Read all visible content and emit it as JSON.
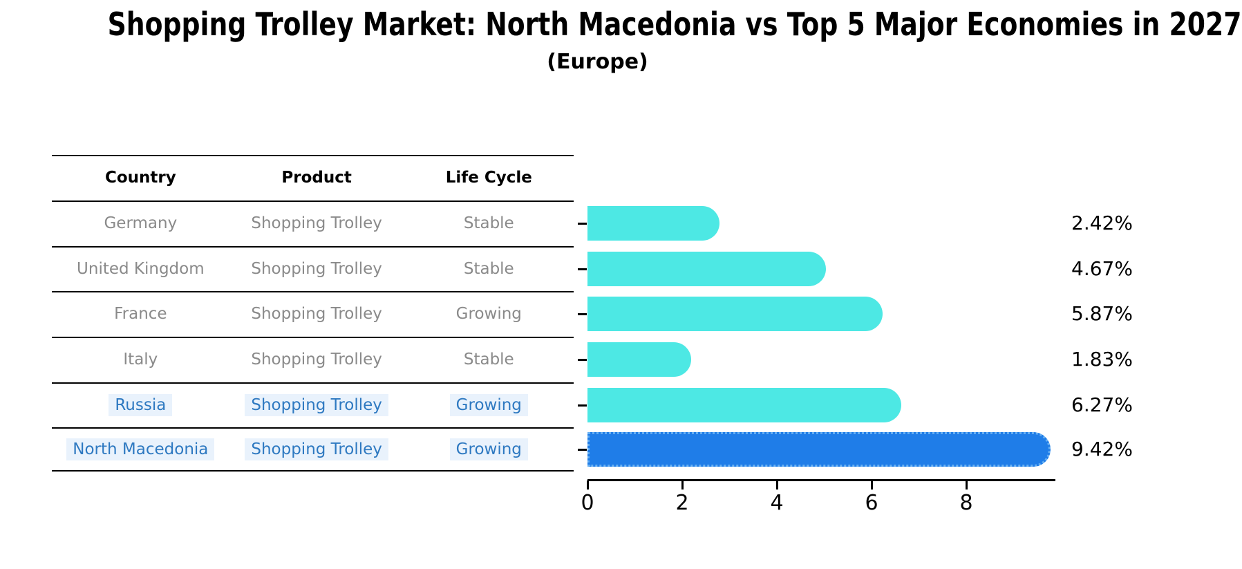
{
  "title": "Shopping Trolley Market: North Macedonia vs Top 5 Major Economies in 2027",
  "subtitle": "(Europe)",
  "table": {
    "headers": [
      "Country",
      "Product",
      "Life Cycle"
    ],
    "rows": [
      {
        "country": "Germany",
        "product": "Shopping Trolley",
        "life_cycle": "Stable",
        "highlight": false
      },
      {
        "country": "United Kingdom",
        "product": "Shopping Trolley",
        "life_cycle": "Stable",
        "highlight": false
      },
      {
        "country": "France",
        "product": "Shopping Trolley",
        "life_cycle": "Growing",
        "highlight": false
      },
      {
        "country": "Italy",
        "product": "Shopping Trolley",
        "life_cycle": "Stable",
        "highlight": false
      },
      {
        "country": "Russia",
        "product": "Shopping Trolley",
        "life_cycle": "Growing",
        "highlight": true
      }
    ],
    "highlight_row": {
      "country": "North Macedonia",
      "product": "Shopping Trolley",
      "life_cycle": "Growing"
    }
  },
  "chart_data": {
    "type": "bar",
    "orientation": "horizontal",
    "title": "Shopping Trolley Market: North Macedonia vs Top 5 Major Economies in 2027",
    "subtitle": "(Europe)",
    "categories": [
      "Germany",
      "United Kingdom",
      "France",
      "Italy",
      "Russia",
      "North Macedonia"
    ],
    "values": [
      2.42,
      4.67,
      5.87,
      1.83,
      6.27,
      9.42
    ],
    "value_labels": [
      "2.42%",
      "4.67%",
      "5.87%",
      "1.83%",
      "6.27%",
      "9.42%"
    ],
    "x_ticks": [
      "0",
      "2",
      "4",
      "6",
      "8"
    ],
    "x_tick_values": [
      0,
      2,
      4,
      6,
      8
    ],
    "xlim": [
      0,
      9.88
    ],
    "grid": false,
    "legend": "none",
    "highlight_index": 5
  },
  "colors": {
    "bar_color": "#4de8e4",
    "highlight_bar_color": "#1f7de8",
    "highlight_bar_edge": "#66aff2",
    "highlight_text": "#2e79c1",
    "highlight_text_bg": "#e9f2fc",
    "table_text": "#8a8a8a",
    "axis_color": "#000000",
    "background": "#ffffff"
  }
}
